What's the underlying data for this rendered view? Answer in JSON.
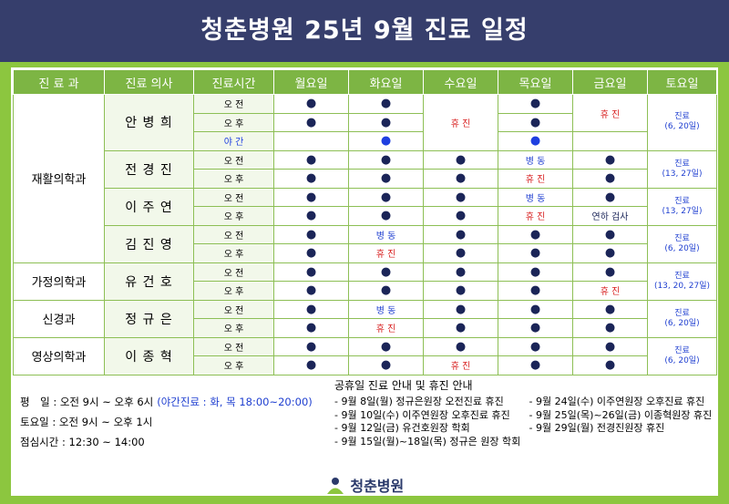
{
  "header": {
    "title": "청춘병원 25년 9월 진료 일정"
  },
  "table": {
    "columns": [
      "진 료 과",
      "진료 의사",
      "진료시간",
      "월요일",
      "화요일",
      "수요일",
      "목요일",
      "금요일",
      "토요일"
    ],
    "colors": {
      "●": "#1b2558",
      "휴 진": "#d82020",
      "병 동": "#1f3fd0",
      "연하 검사": "#1b2558"
    },
    "night_color": "#1f3fe0",
    "departments": [
      {
        "name": "재활의학과",
        "doctors": [
          {
            "name": "안 병 희",
            "saturday": [
              "진료",
              "(6, 20일)"
            ],
            "rows": [
              {
                "time": "오 전",
                "cells": [
                  "●",
                  "●",
                  "휴 진",
                  "●",
                  "휴 진"
                ]
              },
              {
                "time": "오 후",
                "cells": [
                  "●",
                  "●",
                  null,
                  "●",
                  null
                ]
              },
              {
                "time": "야 간",
                "cells": [
                  null,
                  "●",
                  null,
                  "●",
                  null
                ]
              }
            ]
          },
          {
            "name": "전 경 진",
            "saturday": [
              "진료",
              "(13, 27일)"
            ],
            "rows": [
              {
                "time": "오 전",
                "cells": [
                  "●",
                  "●",
                  "●",
                  "병 동",
                  "●"
                ]
              },
              {
                "time": "오 후",
                "cells": [
                  "●",
                  "●",
                  "●",
                  "휴 진",
                  "●"
                ]
              }
            ]
          },
          {
            "name": "이 주 연",
            "saturday": [
              "진료",
              "(13, 27일)"
            ],
            "rows": [
              {
                "time": "오 전",
                "cells": [
                  "●",
                  "●",
                  "●",
                  "병 동",
                  "●"
                ]
              },
              {
                "time": "오 후",
                "cells": [
                  "●",
                  "●",
                  "●",
                  "휴 진",
                  "연하 검사"
                ]
              }
            ]
          },
          {
            "name": "김 진 영",
            "saturday": [
              "진료",
              "(6, 20일)"
            ],
            "rows": [
              {
                "time": "오 전",
                "cells": [
                  "●",
                  "병 동",
                  "●",
                  "●",
                  "●"
                ]
              },
              {
                "time": "오 후",
                "cells": [
                  "●",
                  "휴 진",
                  "●",
                  "●",
                  "●"
                ]
              }
            ]
          }
        ]
      },
      {
        "name": "가정의학과",
        "doctors": [
          {
            "name": "유 건 호",
            "saturday": [
              "진료",
              "(13, 20, 27일)"
            ],
            "rows": [
              {
                "time": "오 전",
                "cells": [
                  "●",
                  "●",
                  "●",
                  "●",
                  "●"
                ]
              },
              {
                "time": "오 후",
                "cells": [
                  "●",
                  "●",
                  "●",
                  "●",
                  "휴 진"
                ]
              }
            ]
          }
        ]
      },
      {
        "name": "신경과",
        "doctors": [
          {
            "name": "정 규 은",
            "saturday": [
              "진료",
              "(6, 20일)"
            ],
            "rows": [
              {
                "time": "오 전",
                "cells": [
                  "●",
                  "병 동",
                  "●",
                  "●",
                  "●"
                ]
              },
              {
                "time": "오 후",
                "cells": [
                  "●",
                  "휴 진",
                  "●",
                  "●",
                  "●"
                ]
              }
            ]
          }
        ]
      },
      {
        "name": "영상의학과",
        "doctors": [
          {
            "name": "이 종 혁",
            "saturday": [
              "진료",
              "(6, 20일)"
            ],
            "rows": [
              {
                "time": "오 전",
                "cells": [
                  "●",
                  "●",
                  "●",
                  "●",
                  "●"
                ]
              },
              {
                "time": "오 후",
                "cells": [
                  "●",
                  "●",
                  "휴 진",
                  "●",
                  "●"
                ]
              }
            ]
          }
        ]
      }
    ]
  },
  "notes": {
    "hours": [
      "평　일 : 오전 9시 ~ 오후 6시",
      "토요일 : 오전 9시 ~ 오후 1시",
      "점심시간 : 12:30 ~ 14:00"
    ],
    "night": "(야간진료 : 화, 목 18:00~20:00)"
  },
  "holiday": {
    "title": "공휴일 진료 안내 및 휴진 안내",
    "left": [
      "- 9월 8일(월) 정규은원장 오전진료 휴진",
      "- 9월 10일(수) 이주연원장 오후진료 휴진",
      "- 9월 12일(금) 유건호원장 학회",
      "- 9월 15일(월)~18일(목) 정규은 원장 학회"
    ],
    "right": [
      "- 9월 24일(수) 이주연원장 오후진료 휴진",
      "- 9월 25일(목)~26일(금) 이종혁원장 휴진",
      "- 9월 29일(월) 전경진원장 휴진"
    ]
  },
  "footer": {
    "logo": "청춘병원"
  }
}
